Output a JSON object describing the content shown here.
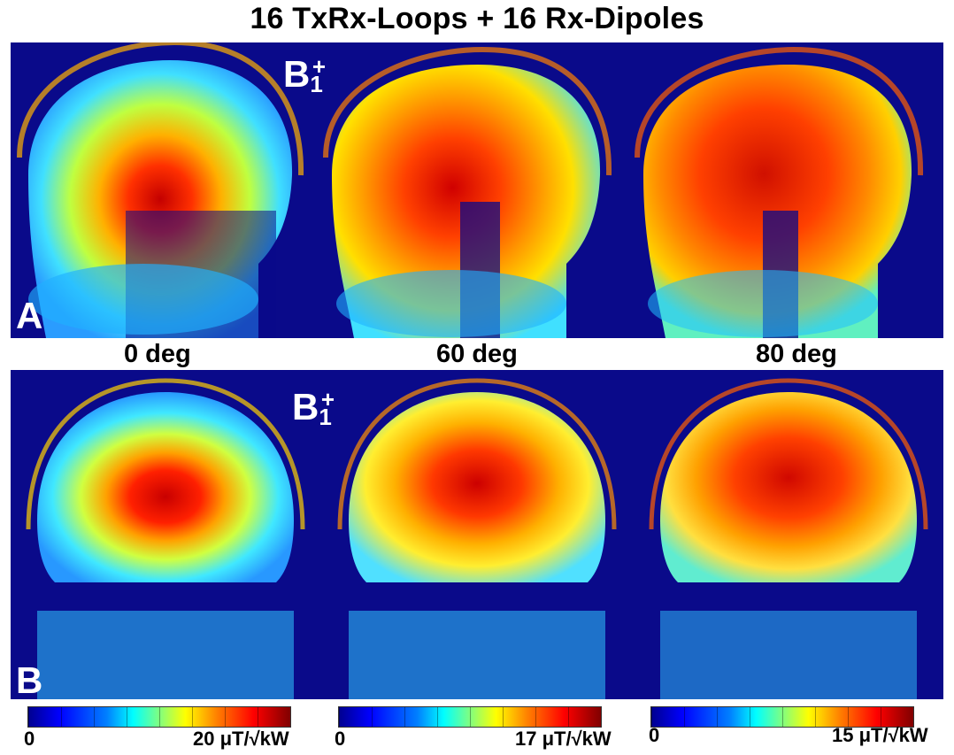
{
  "title": "16 TxRx-Loops + 16 Rx-Dipoles",
  "panels": {
    "a": {
      "letter": "A",
      "field": "B",
      "sub": "1",
      "sup": "+"
    },
    "b": {
      "letter": "B",
      "field": "B",
      "sub": "1",
      "sup": "+"
    }
  },
  "angles": [
    "0 deg",
    "60 deg",
    "80 deg"
  ],
  "colorbars": [
    {
      "min": "0",
      "max": "20 μT/√kW"
    },
    {
      "min": "0",
      "max": "17 μT/√kW"
    },
    {
      "min": "0",
      "max": "15 μT/√kW"
    }
  ],
  "colors": {
    "background": "#0a0a8a",
    "colormap": [
      "#00008f",
      "#0000ff",
      "#0080ff",
      "#00ffff",
      "#80ff80",
      "#ffff00",
      "#ff8000",
      "#ff0000",
      "#800000"
    ]
  }
}
